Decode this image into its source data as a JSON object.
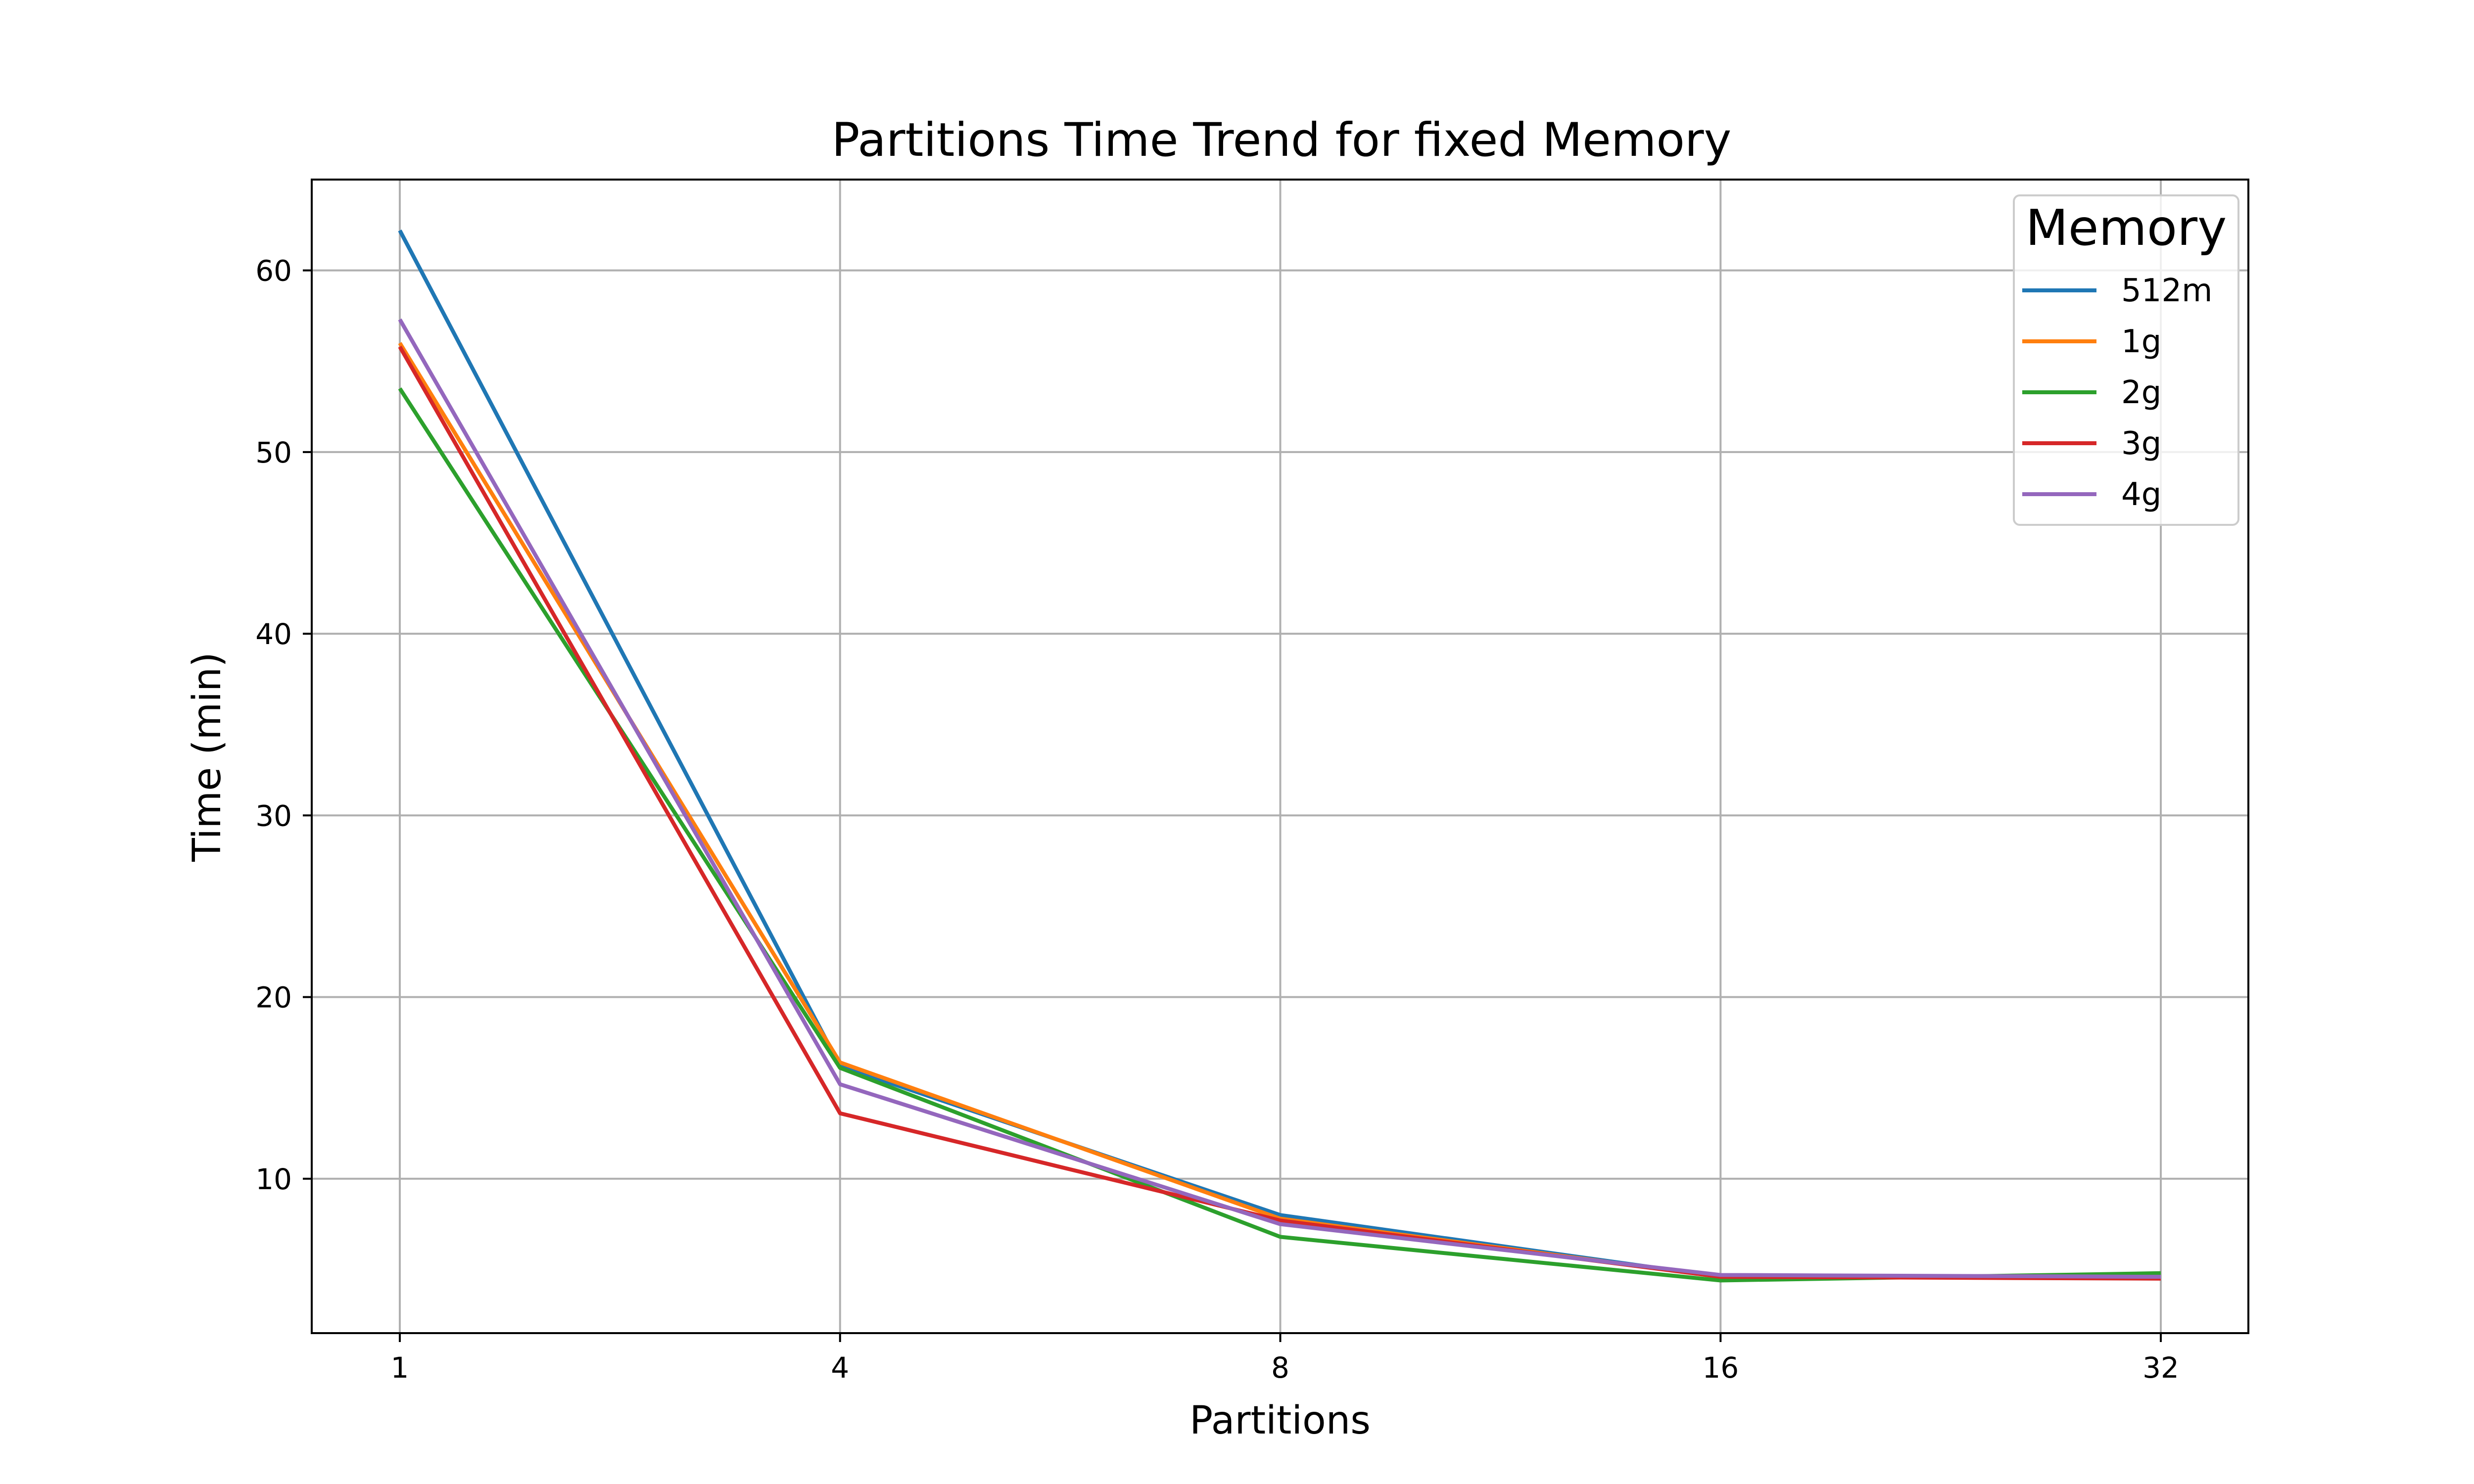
{
  "chart_data": {
    "type": "line",
    "title": "Partitions Time Trend for fixed Memory",
    "xlabel": "Partitions",
    "ylabel": "Time (min)",
    "categories": [
      "1",
      "4",
      "8",
      "16",
      "32"
    ],
    "x_scale": "categorical-evenly-spaced",
    "ylim": [
      1.5,
      65
    ],
    "yticks": [
      10,
      20,
      30,
      40,
      50,
      60
    ],
    "grid": true,
    "legend": {
      "title": "Memory",
      "placement": "top-right"
    },
    "series": [
      {
        "name": "512m",
        "color": "#1f77b4",
        "values": [
          62.2,
          16.2,
          8.0,
          4.6,
          4.6
        ]
      },
      {
        "name": "1g",
        "color": "#ff7f0e",
        "values": [
          56.0,
          16.4,
          7.8,
          4.6,
          4.6
        ]
      },
      {
        "name": "2g",
        "color": "#2ca02c",
        "values": [
          53.5,
          16.1,
          6.8,
          4.4,
          4.8
        ]
      },
      {
        "name": "3g",
        "color": "#d62728",
        "values": [
          55.8,
          13.6,
          7.7,
          4.6,
          4.5
        ]
      },
      {
        "name": "4g",
        "color": "#9467bd",
        "values": [
          57.3,
          15.2,
          7.5,
          4.7,
          4.6
        ]
      }
    ]
  }
}
